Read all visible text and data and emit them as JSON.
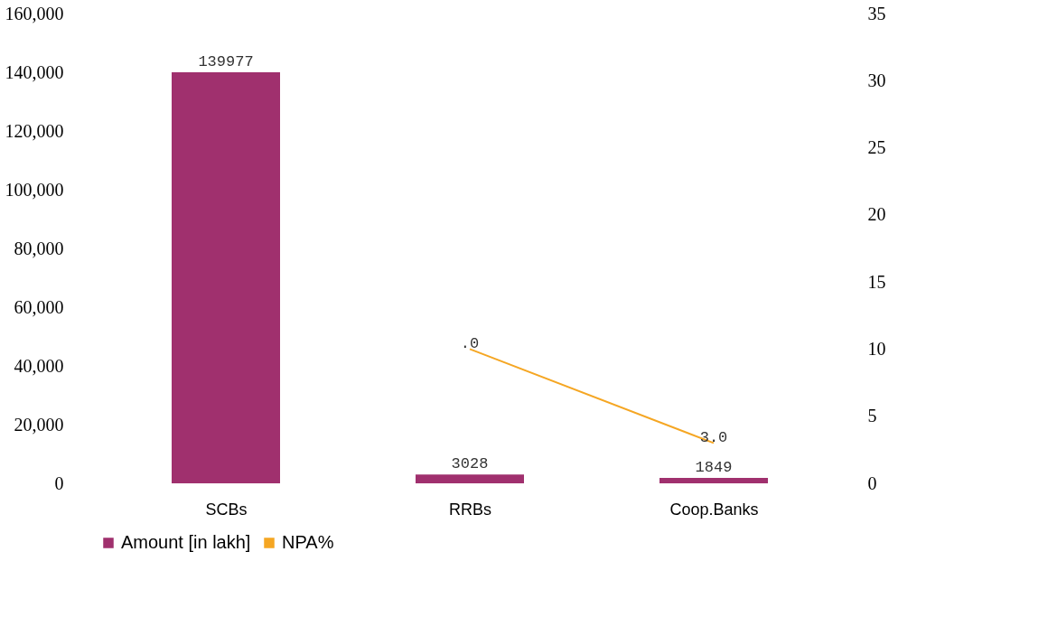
{
  "chart_data": {
    "type": "bar",
    "categories": [
      "SCBs",
      "RRBs",
      "Coop.Banks"
    ],
    "series": [
      {
        "name": "Amount [in lakh]",
        "color": "#a0306e",
        "values": [
          139977,
          3028,
          1849
        ],
        "value_labels": [
          "139977",
          "3028",
          "1849"
        ]
      },
      {
        "name": "NPA%",
        "type": "line",
        "axis": "y2",
        "color": "#f5a623",
        "values": [
          null,
          10,
          3.0
        ]
      }
    ],
    "annotations": [
      ".0",
      "3.0"
    ],
    "ylim": [
      0,
      160000
    ],
    "yticks": [
      0,
      {
        "value": 20000,
        "label": "20,000"
      },
      {
        "value": 40000,
        "label": "40,000"
      },
      {
        "value": 60000,
        "label": "60,000"
      },
      {
        "value": 80000,
        "label": "80,000"
      },
      {
        "value": 100000,
        "label": "100,000"
      },
      {
        "value": 120000,
        "label": "120,000"
      },
      {
        "value": 140000,
        "label": "140,000"
      },
      {
        "value": 160000,
        "label": "160,000"
      }
    ],
    "y2lim": [
      0,
      35
    ],
    "y2ticks": [
      0,
      5,
      10,
      15,
      20,
      25,
      30,
      35
    ],
    "grid": false,
    "legend": "bottom"
  }
}
